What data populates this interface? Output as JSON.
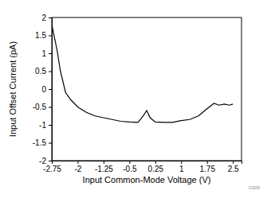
{
  "chart_data": {
    "type": "line",
    "x_label": "Input Common-Mode Voltage (V)",
    "y_label": "Input Offset Current (pA)",
    "annotation": "C005",
    "x": [
      -2.75,
      -2.6,
      -2.5,
      -2.35,
      -2.2,
      -2,
      -1.75,
      -1.5,
      -1.25,
      -1,
      -0.75,
      -0.5,
      -0.25,
      -0.1,
      0,
      0.1,
      0.25,
      0.5,
      0.75,
      1,
      1.25,
      1.5,
      1.75,
      1.95,
      2.1,
      2.25,
      2.4,
      2.5
    ],
    "series": [
      {
        "color": "#000000",
        "values": [
          1.8,
          1.1,
          0.5,
          -0.1,
          -0.3,
          -0.5,
          -0.65,
          -0.75,
          -0.8,
          -0.85,
          -0.9,
          -0.92,
          -0.93,
          -0.75,
          -0.6,
          -0.8,
          -0.92,
          -0.93,
          -0.93,
          -0.88,
          -0.85,
          -0.75,
          -0.55,
          -0.4,
          -0.45,
          -0.42,
          -0.45,
          -0.42
        ]
      }
    ],
    "xlim": [
      -2.75,
      2.75
    ],
    "xticks": [
      -2.75,
      -2,
      -1.25,
      -0.5,
      0.25,
      1,
      1.75,
      2.5
    ],
    "ylim": [
      -2,
      2
    ],
    "yticks": [
      -2,
      -1.5,
      -1,
      -0.5,
      0,
      0.5,
      1,
      1.5,
      2
    ],
    "grid": false
  }
}
